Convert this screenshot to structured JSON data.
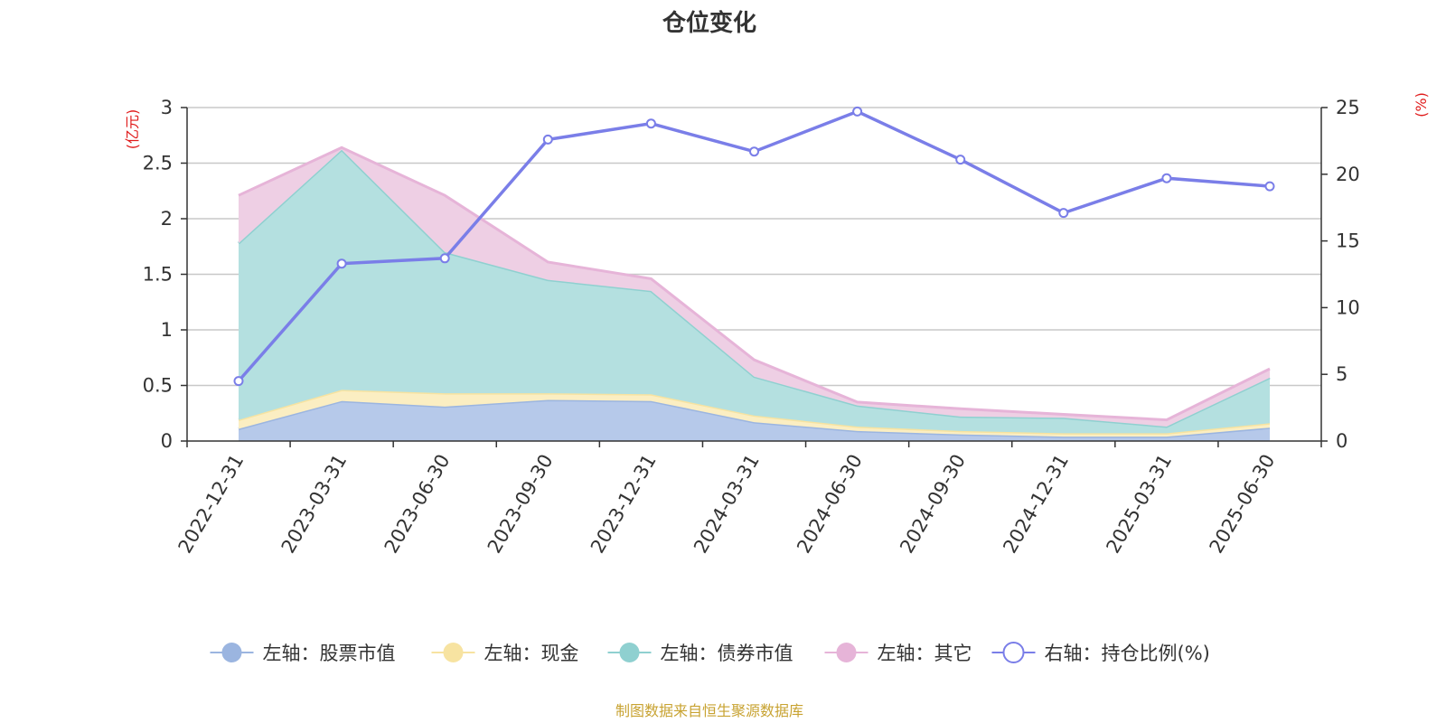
{
  "chart_data": {
    "type": "area",
    "title": "仓位变化",
    "source": "制图数据来自恒生聚源数据库",
    "left_unit": "(亿元)",
    "right_unit": "(%)",
    "categories": [
      "2022-12-31",
      "2023-03-31",
      "2023-06-30",
      "2023-09-30",
      "2023-12-31",
      "2024-03-31",
      "2024-06-30",
      "2024-09-30",
      "2024-12-31",
      "2025-03-31",
      "2025-06-30"
    ],
    "left_axis": {
      "min": 0,
      "max": 3,
      "ticks": [
        "0",
        "0.5",
        "1",
        "1.5",
        "2",
        "2.5",
        "3"
      ]
    },
    "right_axis": {
      "min": 0,
      "max": 25,
      "ticks": [
        "0",
        "5",
        "10",
        "15",
        "20",
        "25"
      ]
    },
    "stack_order": [
      "股票市值",
      "现金",
      "债券市值",
      "其它"
    ],
    "series": [
      {
        "name": "左轴：股票市值",
        "axis": "left",
        "kind": "area",
        "color": "#9bb5e0",
        "fill": "#b6c9ea",
        "values": [
          0.11,
          0.36,
          0.31,
          0.37,
          0.36,
          0.17,
          0.09,
          0.06,
          0.04,
          0.04,
          0.12
        ]
      },
      {
        "name": "左轴：现金",
        "axis": "left",
        "kind": "area",
        "color": "#f7e3a1",
        "fill": "#fbeec2",
        "values": [
          0.08,
          0.1,
          0.12,
          0.06,
          0.06,
          0.06,
          0.04,
          0.03,
          0.03,
          0.03,
          0.04
        ]
      },
      {
        "name": "左轴：债券市值",
        "axis": "left",
        "kind": "area",
        "color": "#8fd0d0",
        "fill": "#b4e0e0",
        "values": [
          1.59,
          2.16,
          1.27,
          1.02,
          0.93,
          0.35,
          0.19,
          0.13,
          0.14,
          0.06,
          0.41
        ]
      },
      {
        "name": "左轴：其它",
        "axis": "left",
        "kind": "area",
        "color": "#e6b4d8",
        "fill": "#eecfe4",
        "values": [
          0.43,
          0.02,
          0.51,
          0.16,
          0.11,
          0.15,
          0.03,
          0.07,
          0.03,
          0.06,
          0.08
        ]
      },
      {
        "name": "右轴：持仓比例(%)",
        "axis": "right",
        "kind": "line",
        "color": "#7a7ee8",
        "values": [
          4.5,
          13.3,
          13.7,
          22.6,
          23.8,
          21.7,
          24.7,
          21.1,
          17.1,
          19.7,
          19.1
        ]
      }
    ],
    "grid": true,
    "legend_position": "bottom"
  }
}
